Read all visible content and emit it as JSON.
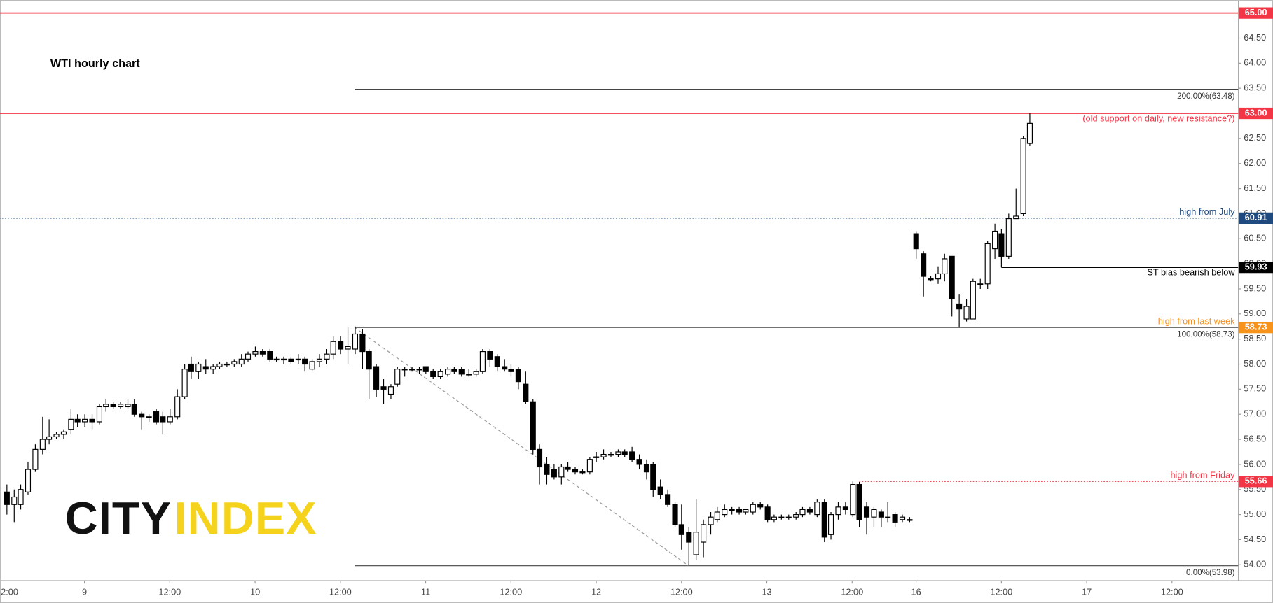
{
  "chart_data": {
    "type": "candlestick",
    "title": "WTI hourly chart",
    "x": [
      1,
      2,
      3,
      4,
      5,
      6,
      7,
      8,
      9,
      10,
      11,
      12,
      13,
      14,
      15,
      16,
      17,
      18,
      19,
      20,
      21,
      22,
      23,
      24,
      25,
      26,
      27,
      28,
      29,
      30,
      31,
      32,
      33,
      34,
      35,
      36,
      37,
      38,
      39,
      40,
      41,
      42,
      43,
      44,
      45,
      46,
      47,
      48,
      49,
      50,
      51,
      52,
      53,
      54,
      55,
      56,
      57,
      58,
      59,
      60,
      61,
      62,
      63,
      64,
      65,
      66,
      67,
      68,
      69,
      70,
      71,
      72,
      73,
      74,
      75,
      76,
      77,
      78,
      79,
      80,
      81,
      82,
      83,
      84,
      85,
      86,
      87,
      88,
      89,
      90,
      91,
      92,
      93,
      94,
      95,
      96,
      97,
      98,
      99,
      100,
      101,
      102,
      103,
      104,
      105,
      106,
      107,
      108,
      109,
      110,
      111,
      112,
      113,
      114,
      115,
      116,
      117,
      118,
      119,
      120,
      121,
      122,
      123,
      124,
      125,
      126,
      127,
      128,
      129,
      130,
      131,
      132,
      133,
      134,
      135,
      136,
      137,
      138,
      139,
      140,
      141,
      142,
      143,
      144,
      145
    ],
    "open": [
      55.45,
      55.2,
      55.2,
      55.45,
      55.9,
      56.3,
      56.5,
      56.55,
      56.6,
      56.7,
      56.9,
      56.85,
      56.9,
      56.85,
      57.15,
      57.2,
      57.15,
      57.15,
      57.2,
      57.0,
      56.95,
      57.05,
      56.95,
      56.85,
      56.95,
      57.35,
      58.0,
      57.85,
      57.95,
      57.9,
      57.95,
      58.0,
      58.0,
      58.0,
      58.1,
      58.2,
      58.25,
      58.25,
      58.1,
      58.1,
      58.1,
      58.1,
      58.1,
      57.9,
      58.05,
      58.1,
      58.2,
      58.45,
      58.3,
      58.3,
      58.6,
      58.25,
      57.95,
      57.55,
      57.4,
      57.6,
      57.9,
      57.9,
      57.9,
      57.95,
      57.85,
      57.75,
      57.8,
      57.9,
      57.9,
      57.8,
      57.8,
      57.85,
      58.25,
      58.15,
      57.95,
      57.9,
      57.9,
      57.6,
      57.25,
      56.3,
      56.0,
      55.9,
      55.75,
      55.95,
      55.9,
      55.85,
      55.85,
      56.15,
      56.15,
      56.2,
      56.2,
      56.25,
      56.25,
      56.1,
      56.0,
      56.0,
      55.55,
      55.4,
      55.2,
      54.8,
      54.65,
      54.2,
      54.45,
      54.8,
      54.9,
      55.0,
      55.1,
      55.1,
      55.05,
      55.05,
      55.2,
      55.15,
      54.9,
      54.95,
      54.95,
      54.95,
      55.0,
      55.1,
      55.0,
      55.25,
      54.6,
      55.0,
      55.15,
      55.0,
      55.6,
      55.15,
      54.95,
      55.05,
      54.95,
      55.0,
      54.9,
      54.9,
      60.6,
      60.2,
      59.7,
      59.7,
      59.8,
      60.15,
      59.2,
      58.9,
      58.9,
      59.6,
      59.6,
      60.3,
      60.6,
      60.15,
      60.9,
      61.0,
      62.4
    ],
    "high": [
      55.6,
      55.5,
      55.6,
      56.05,
      56.4,
      56.95,
      56.9,
      56.65,
      56.7,
      57.1,
      57.0,
      57.0,
      57.0,
      57.2,
      57.3,
      57.25,
      57.25,
      57.3,
      57.3,
      57.05,
      57.0,
      57.1,
      57.05,
      57.1,
      57.5,
      58.0,
      58.15,
      58.05,
      58.1,
      58.0,
      58.05,
      58.05,
      58.1,
      58.2,
      58.25,
      58.35,
      58.3,
      58.3,
      58.15,
      58.15,
      58.15,
      58.2,
      58.15,
      58.1,
      58.2,
      58.3,
      58.55,
      58.55,
      58.75,
      58.75,
      58.7,
      58.3,
      58.0,
      57.7,
      57.6,
      57.95,
      57.95,
      57.95,
      57.95,
      57.95,
      57.9,
      57.9,
      57.95,
      57.95,
      57.95,
      57.9,
      57.9,
      58.3,
      58.3,
      58.2,
      58.1,
      58.0,
      57.95,
      57.85,
      57.3,
      56.4,
      56.15,
      56.0,
      56.0,
      56.05,
      55.95,
      55.9,
      56.15,
      56.25,
      56.3,
      56.25,
      56.3,
      56.3,
      56.35,
      56.2,
      56.1,
      56.05,
      55.7,
      55.5,
      55.25,
      55.2,
      54.75,
      55.3,
      54.9,
      55.05,
      55.15,
      55.2,
      55.15,
      55.15,
      55.1,
      55.25,
      55.25,
      55.2,
      55.0,
      55.0,
      55.0,
      55.05,
      55.15,
      55.15,
      55.3,
      55.3,
      55.05,
      55.25,
      55.25,
      55.66,
      55.65,
      55.25,
      55.15,
      55.1,
      55.25,
      55.05,
      55.0,
      54.95,
      60.65,
      60.25,
      59.75,
      59.95,
      60.2,
      60.15,
      59.4,
      59.3,
      59.7,
      59.7,
      60.45,
      60.8,
      60.7,
      61.0,
      61.5,
      62.55,
      63.0
    ],
    "low": [
      55.0,
      54.85,
      55.1,
      55.4,
      55.85,
      56.2,
      56.4,
      56.5,
      56.5,
      56.6,
      56.75,
      56.75,
      56.7,
      56.8,
      57.05,
      57.1,
      57.1,
      57.1,
      56.95,
      56.7,
      56.85,
      56.8,
      56.6,
      56.8,
      56.9,
      57.3,
      57.7,
      57.7,
      57.8,
      57.8,
      57.9,
      57.95,
      57.95,
      57.95,
      58.05,
      58.15,
      58.15,
      58.05,
      58.05,
      58.0,
      58.0,
      58.0,
      57.85,
      57.85,
      57.95,
      58.0,
      58.1,
      58.2,
      58.0,
      58.2,
      57.9,
      57.3,
      57.35,
      57.2,
      57.3,
      57.55,
      57.75,
      57.85,
      57.8,
      57.8,
      57.7,
      57.7,
      57.75,
      57.8,
      57.75,
      57.75,
      57.75,
      57.8,
      57.95,
      57.85,
      57.85,
      57.75,
      57.5,
      57.2,
      56.2,
      55.6,
      55.6,
      55.7,
      55.6,
      55.85,
      55.8,
      55.8,
      55.8,
      56.05,
      56.1,
      56.15,
      56.15,
      56.15,
      56.05,
      55.9,
      55.7,
      55.35,
      55.3,
      55.15,
      54.75,
      54.3,
      53.98,
      54.1,
      54.15,
      54.6,
      54.85,
      54.95,
      55.0,
      55.0,
      55.0,
      55.0,
      55.1,
      54.85,
      54.85,
      54.9,
      54.9,
      54.9,
      54.95,
      55.0,
      54.95,
      54.45,
      54.5,
      54.9,
      55.0,
      54.95,
      54.75,
      54.6,
      54.75,
      54.75,
      54.85,
      54.75,
      54.85,
      54.85,
      60.1,
      59.35,
      59.65,
      59.6,
      59.65,
      58.95,
      58.73,
      58.85,
      58.9,
      59.5,
      59.5,
      60.1,
      59.93,
      60.1,
      60.9,
      60.95,
      62.35
    ],
    "close": [
      55.2,
      55.35,
      55.5,
      55.9,
      56.3,
      56.5,
      56.55,
      56.6,
      56.65,
      56.9,
      56.85,
      56.9,
      56.85,
      57.15,
      57.2,
      57.15,
      57.2,
      57.2,
      57.0,
      56.95,
      56.95,
      56.85,
      56.85,
      56.95,
      57.35,
      57.9,
      57.85,
      58.0,
      57.9,
      57.95,
      58.0,
      58.0,
      58.05,
      58.1,
      58.2,
      58.25,
      58.2,
      58.1,
      58.1,
      58.1,
      58.05,
      58.1,
      58.0,
      58.05,
      58.1,
      58.2,
      58.45,
      58.3,
      58.35,
      58.6,
      58.25,
      57.9,
      57.5,
      57.5,
      57.55,
      57.9,
      57.9,
      57.9,
      57.9,
      57.85,
      57.75,
      57.85,
      57.9,
      57.85,
      57.8,
      57.8,
      57.85,
      58.25,
      58.1,
      57.95,
      57.9,
      57.85,
      57.65,
      57.25,
      56.3,
      55.95,
      55.8,
      55.75,
      55.95,
      55.9,
      55.85,
      55.85,
      56.1,
      56.15,
      56.2,
      56.2,
      56.25,
      56.2,
      56.1,
      56.0,
      55.85,
      55.5,
      55.4,
      55.2,
      54.8,
      54.6,
      54.45,
      54.65,
      54.8,
      54.95,
      55.05,
      55.1,
      55.1,
      55.05,
      55.1,
      55.2,
      55.15,
      54.9,
      54.95,
      54.95,
      54.95,
      55.0,
      55.1,
      55.05,
      55.25,
      54.55,
      55.0,
      55.15,
      55.1,
      55.6,
      54.9,
      54.95,
      55.1,
      54.95,
      54.95,
      54.85,
      54.95,
      54.9,
      60.3,
      59.75,
      59.7,
      59.8,
      60.1,
      59.3,
      59.1,
      59.15,
      59.65,
      59.6,
      60.4,
      60.65,
      60.15,
      60.9,
      60.95,
      62.5,
      62.8
    ],
    "up_color": "#ffffff",
    "down_color": "#000000",
    "xlim": [
      0,
      174.3
    ],
    "ylim": [
      53.69,
      65.26
    ],
    "xticks": [
      {
        "value": 0,
        "label": "2:00"
      },
      {
        "value": 12,
        "label": "9"
      },
      {
        "value": 24,
        "label": "12:00"
      },
      {
        "value": 36,
        "label": "10"
      },
      {
        "value": 48,
        "label": "12:00"
      },
      {
        "value": 60,
        "label": "11"
      },
      {
        "value": 72,
        "label": "12:00"
      },
      {
        "value": 84,
        "label": "12"
      },
      {
        "value": 96,
        "label": "12:00"
      },
      {
        "value": 108,
        "label": "13"
      },
      {
        "value": 120,
        "label": "12:00"
      },
      {
        "value": 129,
        "label": "16"
      },
      {
        "value": 141,
        "label": "12:00"
      },
      {
        "value": 153,
        "label": "17"
      },
      {
        "value": 165,
        "label": "12:00"
      }
    ],
    "yticks": [
      {
        "value": 54,
        "label": "54.00"
      },
      {
        "value": 54.5,
        "label": "54.50"
      },
      {
        "value": 55,
        "label": "55.00"
      },
      {
        "value": 55.5,
        "label": "55.50"
      },
      {
        "value": 56,
        "label": "56.00"
      },
      {
        "value": 56.5,
        "label": "56.50"
      },
      {
        "value": 57,
        "label": "57.00"
      },
      {
        "value": 57.5,
        "label": "57.50"
      },
      {
        "value": 58,
        "label": "58.00"
      },
      {
        "value": 58.5,
        "label": "58.50"
      },
      {
        "value": 59,
        "label": "59.00"
      },
      {
        "value": 59.5,
        "label": "59.50"
      },
      {
        "value": 60,
        "label": "60.00"
      },
      {
        "value": 60.5,
        "label": "60.50"
      },
      {
        "value": 61,
        "label": "61.00"
      },
      {
        "value": 61.5,
        "label": "61.50"
      },
      {
        "value": 62,
        "label": "62.00"
      },
      {
        "value": 62.5,
        "label": "62.50"
      },
      {
        "value": 63,
        "label": "63.00"
      },
      {
        "value": 63.5,
        "label": "63.50"
      },
      {
        "value": 64,
        "label": "64.00"
      },
      {
        "value": 64.5,
        "label": "64.50"
      },
      {
        "value": 65,
        "label": "65.00"
      }
    ],
    "levels": [
      {
        "value": 65,
        "label": "65.00",
        "color": "#f23645",
        "line_color": "#f23645",
        "line": "solid",
        "from": 0
      },
      {
        "value": 63,
        "label": "63.00",
        "color": "#f23645",
        "line_color": "#f23645",
        "line": "solid",
        "from": 0,
        "note": "(old support on daily, new resistance?)",
        "note_pos": "below"
      },
      {
        "value": 60.91,
        "label": "60.91",
        "color": "#1e4a80",
        "line_color": "#1e4a80",
        "line": "dotted",
        "from": 0,
        "note": "high from July",
        "note_pos": "above"
      },
      {
        "value": 59.93,
        "label": "59.93",
        "color": "#000000",
        "line_color": "#000000",
        "line": "solid",
        "from": 141,
        "note": "ST bias bearish below",
        "note_pos": "below"
      },
      {
        "value": 58.73,
        "label": "58.73",
        "color": "#f7931a",
        "line_color": "#000000",
        "line": "none",
        "from": 50,
        "note": "high from last week",
        "note_pos": "above"
      },
      {
        "value": 55.66,
        "label": "55.66",
        "color": "#f23645",
        "line_color": "#f23645",
        "line": "dotted",
        "from": 121,
        "note": "high from Friday",
        "note_pos": "above"
      }
    ],
    "fib_levels": [
      {
        "value": 63.48,
        "label": "200.00%(63.48)",
        "from": 50
      },
      {
        "value": 58.73,
        "label": "100.00%(58.73)",
        "from": 50
      },
      {
        "value": 53.98,
        "label": "0.00%(53.98)",
        "from": 50
      }
    ],
    "trendline": [
      [
        50,
        58.73
      ],
      [
        97,
        53.98
      ]
    ]
  },
  "logo": {
    "parts": [
      "CITY",
      "INDEX"
    ],
    "colors": [
      "#111111",
      "#f5d31c"
    ]
  }
}
